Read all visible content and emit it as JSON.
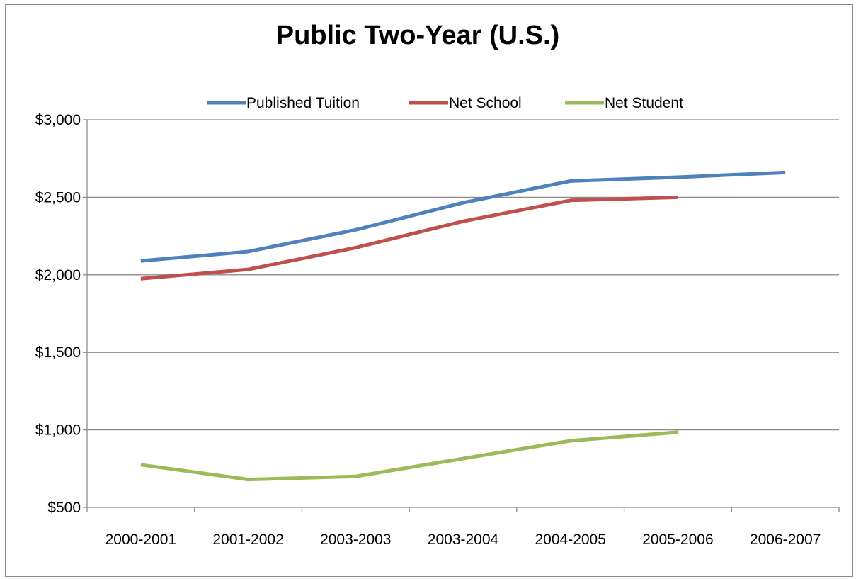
{
  "chart_data": {
    "type": "line",
    "title": "Public Two-Year (U.S.)",
    "xlabel": "",
    "ylabel": "",
    "categories": [
      "2000-2001",
      "2001-2002",
      "2003-2003",
      "2003-2004",
      "2004-2005",
      "2005-2006",
      "2006-2007"
    ],
    "ylim": [
      500,
      3000
    ],
    "yticks": [
      500,
      1000,
      1500,
      2000,
      2500,
      3000
    ],
    "ytick_labels": [
      "$500",
      "$1,000",
      "$1,500",
      "$2,000",
      "$2,500",
      "$3,000"
    ],
    "grid": true,
    "legend_position": "top",
    "series": [
      {
        "name": "Published Tuition",
        "color": "#4f81bd",
        "values": [
          2090,
          2150,
          2290,
          2465,
          2605,
          2630,
          2660
        ]
      },
      {
        "name": "Net School",
        "color": "#c0504d",
        "values": [
          1975,
          2035,
          2175,
          2345,
          2480,
          2500,
          null
        ]
      },
      {
        "name": "Net Student",
        "color": "#9bbb59",
        "values": [
          775,
          680,
          700,
          815,
          930,
          985,
          null
        ]
      }
    ]
  }
}
